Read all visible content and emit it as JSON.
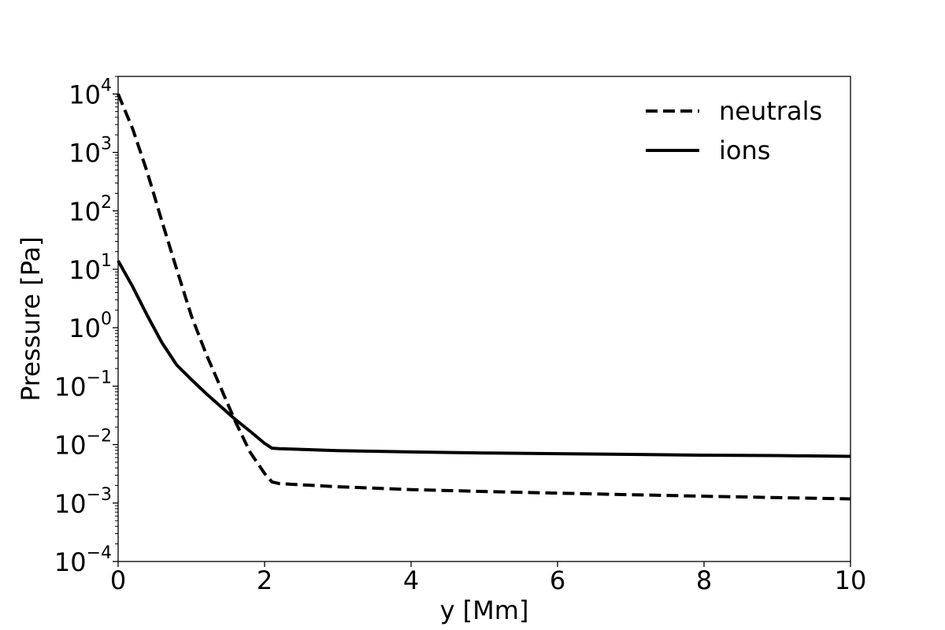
{
  "chart_data": {
    "type": "line",
    "title": "",
    "xlabel": "y [Mm]",
    "ylabel": "Pressure [Pa]",
    "xlim": [
      0,
      10
    ],
    "ylim": [
      0.0001,
      20000
    ],
    "yscale": "log",
    "grid": false,
    "legend_position": "top-right",
    "x_ticks": [
      0,
      2,
      4,
      6,
      8,
      10
    ],
    "x_tick_labels": [
      "0",
      "2",
      "4",
      "6",
      "8",
      "10"
    ],
    "y_ticks": [
      0.0001,
      0.001,
      0.01,
      0.1,
      1,
      10,
      100,
      1000,
      10000
    ],
    "y_tick_labels": [
      {
        "base": "10",
        "exp": "−4"
      },
      {
        "base": "10",
        "exp": "−3"
      },
      {
        "base": "10",
        "exp": "−2"
      },
      {
        "base": "10",
        "exp": "−1"
      },
      {
        "base": "10",
        "exp": "0"
      },
      {
        "base": "10",
        "exp": "1"
      },
      {
        "base": "10",
        "exp": "2"
      },
      {
        "base": "10",
        "exp": "3"
      },
      {
        "base": "10",
        "exp": "4"
      }
    ],
    "series": [
      {
        "name": "neutrals",
        "style": "dashed",
        "color": "#000000",
        "x": [
          0,
          0.2,
          0.4,
          0.6,
          0.8,
          1.0,
          1.2,
          1.4,
          1.6,
          1.8,
          2.0,
          2.1,
          2.2,
          3,
          4,
          5,
          6,
          7,
          8,
          9,
          10
        ],
        "y": [
          10000,
          2500,
          450,
          65,
          10,
          1.6,
          0.36,
          0.095,
          0.025,
          0.0075,
          0.0032,
          0.0023,
          0.00215,
          0.0019,
          0.0017,
          0.00158,
          0.00148,
          0.00139,
          0.00131,
          0.00124,
          0.00118
        ]
      },
      {
        "name": "ions",
        "style": "solid",
        "color": "#000000",
        "x": [
          0,
          0.2,
          0.4,
          0.6,
          0.8,
          1.0,
          1.2,
          1.4,
          1.6,
          1.8,
          2.0,
          2.1,
          2.2,
          3,
          4,
          5,
          6,
          7,
          8,
          9,
          10
        ],
        "y": [
          14,
          5,
          1.6,
          0.55,
          0.23,
          0.13,
          0.075,
          0.045,
          0.027,
          0.017,
          0.0105,
          0.0087,
          0.0085,
          0.0079,
          0.0075,
          0.0072,
          0.007,
          0.0068,
          0.0066,
          0.0065,
          0.0063
        ]
      }
    ]
  }
}
